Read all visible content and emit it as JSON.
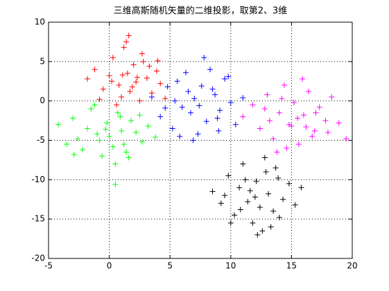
{
  "chart_data": {
    "type": "scatter",
    "title": "三维高斯随机矢量的二维投影，取第2、3维",
    "xlim": [
      -5,
      20
    ],
    "xticks": [
      -5,
      0,
      5,
      10,
      15,
      20
    ],
    "ylim": [
      -20,
      10
    ],
    "yticks": [
      -20,
      -15,
      -10,
      -5,
      0,
      5,
      10
    ],
    "grid": true,
    "marker": "+",
    "series": [
      {
        "color": "#ff0000",
        "x": [
          -1.8,
          -1.2,
          -0.5,
          0.0,
          0.3,
          0.8,
          1.0,
          1.2,
          1.5,
          1.7,
          2.0,
          2.2,
          2.5,
          2.8,
          3.1,
          3.5,
          3.9,
          4.2,
          4.6,
          0.6,
          1.4,
          2.3,
          -0.8,
          3.3,
          1.9,
          0.2,
          2.7,
          1.1,
          4.0,
          1.6
        ],
        "values": [
          2.8,
          4.0,
          1.5,
          3.2,
          5.5,
          2.0,
          0.5,
          6.8,
          3.5,
          1.2,
          4.6,
          2.4,
          0.0,
          5.0,
          2.9,
          1.0,
          3.8,
          2.2,
          0.3,
          -0.5,
          7.5,
          3.0,
          0.2,
          4.4,
          1.8,
          2.5,
          6.0,
          3.3,
          5.1,
          8.3
        ]
      },
      {
        "color": "#00ff00",
        "x": [
          -4.2,
          -3.5,
          -3.0,
          -2.6,
          -2.2,
          -1.8,
          -1.5,
          -1.0,
          -0.6,
          -0.2,
          0.0,
          0.3,
          0.7,
          1.0,
          1.4,
          1.8,
          2.2,
          2.7,
          3.2,
          3.8,
          -1.2,
          0.5,
          -0.8,
          1.6,
          -2.9,
          0.9,
          2.5,
          -0.3,
          1.2,
          0.5
        ],
        "values": [
          -3.0,
          -5.5,
          -2.2,
          -4.8,
          -6.2,
          -3.5,
          -1.0,
          -4.2,
          -7.0,
          -2.8,
          -4.5,
          -5.8,
          -1.5,
          -3.8,
          -6.5,
          -2.5,
          -4.0,
          -5.2,
          -3.2,
          -4.6,
          -0.5,
          -8.0,
          -5.0,
          -7.2,
          -6.8,
          -2.0,
          -1.8,
          -3.6,
          -5.5,
          -10.6
        ]
      },
      {
        "color": "#0000ff",
        "x": [
          3.5,
          4.2,
          4.8,
          5.2,
          5.6,
          6.0,
          6.3,
          6.7,
          7.0,
          7.3,
          7.6,
          8.0,
          8.3,
          8.7,
          9.1,
          9.5,
          10.0,
          10.4,
          11.0,
          5.8,
          6.5,
          7.8,
          8.9,
          4.6,
          9.8,
          6.9,
          7.4,
          8.5,
          5.4,
          9.0
        ],
        "values": [
          0.5,
          -2.0,
          1.8,
          -3.5,
          2.5,
          -0.8,
          3.6,
          -1.5,
          0.3,
          -4.2,
          1.9,
          -2.6,
          4.0,
          0.8,
          -1.2,
          2.8,
          -0.2,
          -3.0,
          0.4,
          -4.5,
          1.2,
          5.5,
          -2.2,
          -0.9,
          3.1,
          -5.0,
          -0.6,
          1.5,
          0.0,
          -3.8
        ]
      },
      {
        "color": "#ff00ff",
        "x": [
          11.0,
          11.8,
          12.4,
          13.0,
          13.5,
          14.0,
          14.4,
          14.8,
          15.2,
          15.6,
          16.0,
          16.4,
          16.9,
          17.3,
          17.8,
          18.3,
          18.9,
          19.5,
          13.2,
          14.6,
          15.9,
          16.7,
          12.8,
          15.0,
          17.0,
          14.2,
          15.5,
          16.2,
          13.8,
          18.0
        ],
        "values": [
          -2.0,
          -0.5,
          -3.5,
          0.8,
          -4.8,
          -1.5,
          2.0,
          -3.0,
          -0.2,
          -5.5,
          -1.8,
          1.2,
          -3.8,
          -0.8,
          -2.5,
          0.5,
          -2.8,
          -4.8,
          -2.5,
          -6.0,
          2.8,
          -4.5,
          -1.0,
          -3.2,
          -1.5,
          0.3,
          -2.2,
          -3.3,
          -6.5,
          -4.0
        ]
      },
      {
        "color": "#000000",
        "x": [
          8.5,
          9.2,
          9.8,
          10.3,
          10.7,
          11.0,
          11.4,
          11.8,
          12.1,
          12.4,
          12.8,
          13.1,
          13.5,
          13.9,
          14.3,
          14.8,
          15.3,
          15.8,
          10.0,
          11.2,
          12.6,
          13.7,
          9.5,
          12.0,
          14.0,
          11.6,
          13.3,
          10.8,
          12.9,
          12.2
        ],
        "values": [
          -11.5,
          -13.0,
          -9.5,
          -14.5,
          -11.0,
          -8.0,
          -12.8,
          -15.5,
          -10.2,
          -13.5,
          -7.2,
          -11.8,
          -14.0,
          -9.8,
          -12.5,
          -10.5,
          -13.2,
          -11.0,
          -15.5,
          -10.0,
          -16.5,
          -8.5,
          -12.0,
          -12.2,
          -14.8,
          -11.4,
          -16.0,
          -13.8,
          -9.0,
          -17.0
        ]
      }
    ]
  }
}
